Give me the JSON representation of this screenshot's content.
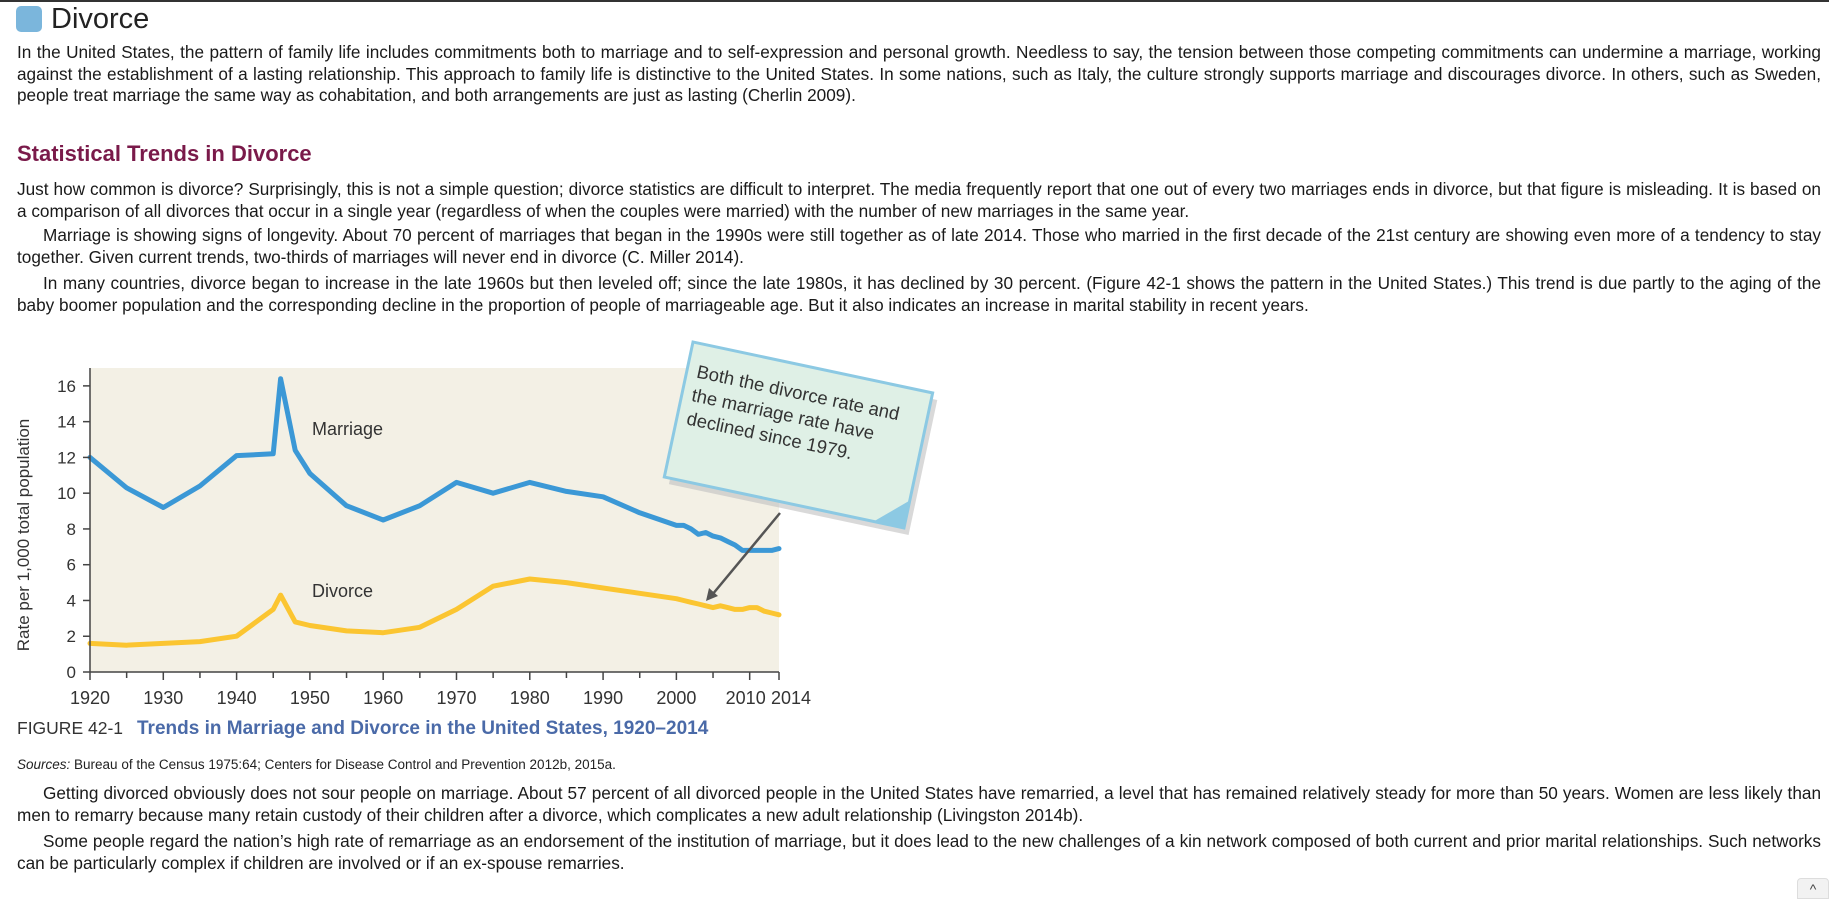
{
  "section": {
    "title": "Divorce",
    "intro": "In the United States, the pattern of family life includes commitments both to marriage and to self-expression and personal growth. Needless to say, the tension between those competing commitments can undermine a marriage, working against the establishment of a lasting relationship. This approach to family life is distinctive to the United States. In some nations, such as Italy, the culture strongly supports marriage and discourages divorce. In others, such as Sweden, people treat marriage the same way as cohabitation, and both arrangements are just as lasting (Cherlin 2009)."
  },
  "subsection": {
    "title": "Statistical Trends in Divorce",
    "p1": "Just how common is divorce? Surprisingly, this is not a simple question; divorce statistics are difficult to interpret. The media frequently report that one out of every two marriages ends in divorce, but that figure is misleading. It is based on a comparison of all divorces that occur in a single year (regardless of when the couples were married) with the number of new marriages in the same year.",
    "p2": "Marriage is showing signs of longevity. About 70 percent of marriages that began in the 1990s were still together as of late 2014. Those who married in the first decade of the 21st century are showing even more of a tendency to stay together. Given current trends, two-thirds of marriages will never end in divorce (C. Miller 2014).",
    "p3": "In many countries, divorce began to increase in the late 1960s but then leveled off; since the late 1980s, it has declined by 30 percent. (Figure 42-1 shows the pattern in the United States.) This trend is due partly to the aging of the baby boomer population and the corresponding decline in the proportion of people of marriageable age. But it also indicates an increase in marital stability in recent years."
  },
  "figure": {
    "number": "FIGURE 42-1",
    "title": "Trends in Marriage and Divorce in the United States, 1920–2014",
    "sources_label": "Sources:",
    "sources_text": " Bureau of the Census 1975:64; Centers for Disease Control and Prevention 2012b, 2015a."
  },
  "chart_data": {
    "type": "line",
    "ylabel": "Rate per 1,000 total population",
    "xlabel": "",
    "ylim": [
      0,
      17
    ],
    "xlim": [
      1920,
      2014
    ],
    "x_ticks": [
      1920,
      1930,
      1940,
      1950,
      1960,
      1970,
      1980,
      1990,
      2000,
      2010,
      2014
    ],
    "y_ticks": [
      0,
      2,
      4,
      6,
      8,
      10,
      12,
      14,
      16
    ],
    "annotation": "Both the divorce rate and the marriage rate have declined since 1979.",
    "series": [
      {
        "name": "Marriage",
        "color": "#3b98d6",
        "points": [
          [
            1920,
            12.0
          ],
          [
            1925,
            10.3
          ],
          [
            1930,
            9.2
          ],
          [
            1935,
            10.4
          ],
          [
            1940,
            12.1
          ],
          [
            1945,
            12.2
          ],
          [
            1946,
            16.4
          ],
          [
            1948,
            12.4
          ],
          [
            1950,
            11.1
          ],
          [
            1955,
            9.3
          ],
          [
            1960,
            8.5
          ],
          [
            1965,
            9.3
          ],
          [
            1970,
            10.6
          ],
          [
            1975,
            10.0
          ],
          [
            1980,
            10.6
          ],
          [
            1985,
            10.1
          ],
          [
            1990,
            9.8
          ],
          [
            1995,
            8.9
          ],
          [
            2000,
            8.2
          ],
          [
            2001,
            8.2
          ],
          [
            2002,
            8.0
          ],
          [
            2003,
            7.7
          ],
          [
            2004,
            7.8
          ],
          [
            2005,
            7.6
          ],
          [
            2006,
            7.5
          ],
          [
            2007,
            7.3
          ],
          [
            2008,
            7.1
          ],
          [
            2009,
            6.8
          ],
          [
            2010,
            6.8
          ],
          [
            2011,
            6.8
          ],
          [
            2012,
            6.8
          ],
          [
            2013,
            6.8
          ],
          [
            2014,
            6.9
          ]
        ]
      },
      {
        "name": "Divorce",
        "color": "#fbc531",
        "points": [
          [
            1920,
            1.6
          ],
          [
            1925,
            1.5
          ],
          [
            1930,
            1.6
          ],
          [
            1935,
            1.7
          ],
          [
            1940,
            2.0
          ],
          [
            1945,
            3.5
          ],
          [
            1946,
            4.3
          ],
          [
            1948,
            2.8
          ],
          [
            1950,
            2.6
          ],
          [
            1955,
            2.3
          ],
          [
            1960,
            2.2
          ],
          [
            1965,
            2.5
          ],
          [
            1970,
            3.5
          ],
          [
            1975,
            4.8
          ],
          [
            1980,
            5.2
          ],
          [
            1985,
            5.0
          ],
          [
            1990,
            4.7
          ],
          [
            1995,
            4.4
          ],
          [
            2000,
            4.1
          ],
          [
            2001,
            4.0
          ],
          [
            2002,
            3.9
          ],
          [
            2003,
            3.8
          ],
          [
            2004,
            3.7
          ],
          [
            2005,
            3.6
          ],
          [
            2006,
            3.7
          ],
          [
            2007,
            3.6
          ],
          [
            2008,
            3.5
          ],
          [
            2009,
            3.5
          ],
          [
            2010,
            3.6
          ],
          [
            2011,
            3.6
          ],
          [
            2012,
            3.4
          ],
          [
            2013,
            3.3
          ],
          [
            2014,
            3.2
          ]
        ]
      }
    ]
  },
  "ui": {
    "scroll_top_symbol": "^"
  }
}
